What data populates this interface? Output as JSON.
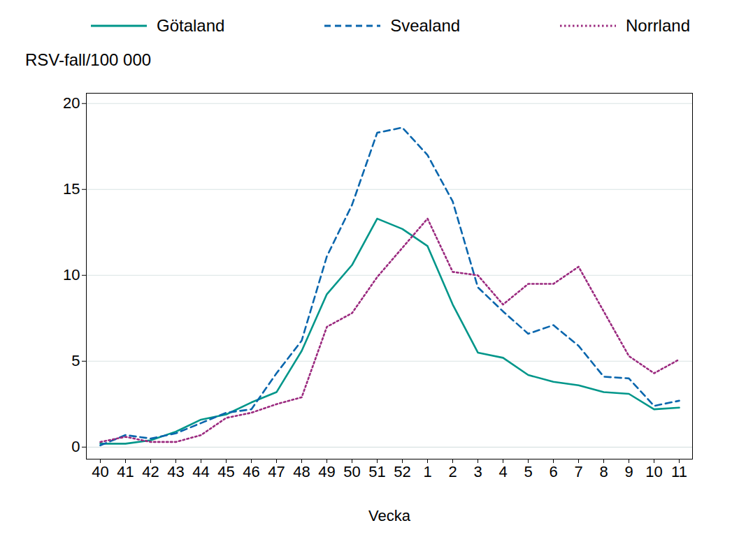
{
  "chart_data": {
    "type": "line",
    "y_label": "RSV-fall/100 000",
    "x_label": "Vecka",
    "categories": [
      "40",
      "41",
      "42",
      "43",
      "44",
      "45",
      "46",
      "47",
      "48",
      "49",
      "50",
      "51",
      "52",
      "1",
      "2",
      "3",
      "4",
      "5",
      "6",
      "7",
      "8",
      "9",
      "10",
      "11"
    ],
    "series": [
      {
        "name": "Götaland",
        "color": "#00968a",
        "line_style": "solid",
        "values": [
          0.2,
          0.2,
          0.4,
          0.9,
          1.6,
          1.9,
          2.6,
          3.2,
          5.6,
          8.9,
          10.6,
          13.3,
          12.7,
          11.7,
          8.3,
          5.5,
          5.2,
          4.2,
          3.8,
          3.6,
          3.2,
          3.1,
          2.2,
          2.3
        ]
      },
      {
        "name": "Svealand",
        "color": "#0a66ad",
        "line_style": "dashed",
        "values": [
          0.1,
          0.7,
          0.5,
          0.8,
          1.4,
          2.0,
          2.2,
          4.3,
          6.2,
          11.1,
          14.1,
          18.3,
          18.6,
          17.0,
          14.3,
          9.3,
          7.9,
          6.6,
          7.1,
          5.9,
          4.1,
          4.0,
          2.4,
          2.7
        ]
      },
      {
        "name": "Norrland",
        "color": "#9b2a7f",
        "line_style": "dotted",
        "values": [
          0.3,
          0.6,
          0.3,
          0.3,
          0.7,
          1.7,
          2.0,
          2.5,
          2.9,
          7.0,
          7.8,
          9.9,
          11.6,
          13.3,
          10.2,
          10.0,
          8.3,
          9.5,
          9.5,
          10.5,
          7.9,
          5.3,
          4.3,
          5.1
        ]
      }
    ],
    "ylim": [
      -0.7,
      20.6
    ],
    "yticks": [
      0,
      5,
      10,
      15,
      20
    ],
    "grid": true,
    "legend": "top"
  }
}
